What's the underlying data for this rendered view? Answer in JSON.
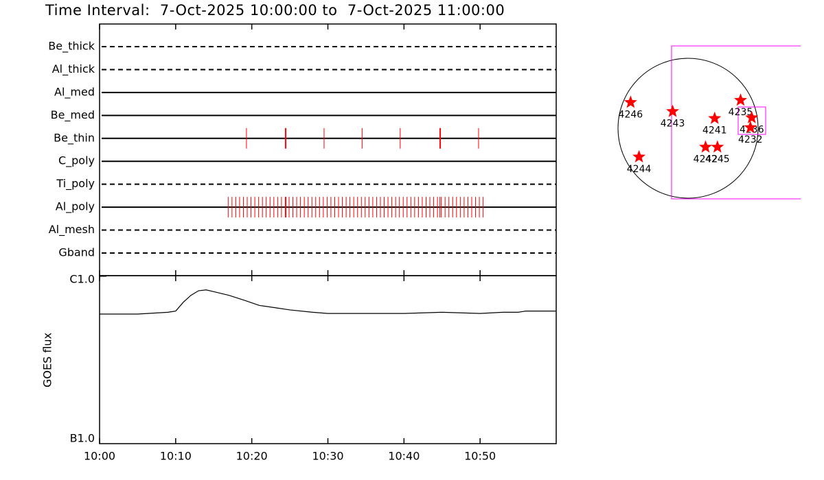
{
  "chart_data": [
    {
      "type": "timeline",
      "title": "Time Interval:  7-Oct-2025 10:00:00 to  7-Oct-2025 11:00:00",
      "categories": [
        "Be_thick",
        "Al_thick",
        "Al_med",
        "Be_med",
        "Be_thin",
        "C_poly",
        "Ti_poly",
        "Al_poly",
        "Al_mesh",
        "Gband"
      ],
      "line_styles": [
        "dashed",
        "dashed",
        "solid",
        "solid",
        "solid",
        "solid",
        "dashed",
        "solid",
        "dashed",
        "dashed"
      ],
      "color": "#ff0000",
      "xlim": [
        0,
        60
      ],
      "events": [
        {
          "name": "Be_thin",
          "x": [
            19.3,
            24.4,
            24.5,
            29.5,
            34.5,
            39.5,
            44.7,
            44.8,
            49.8
          ]
        },
        {
          "name": "Al_poly",
          "x": [
            16.9,
            17.4,
            17.9,
            18.4,
            18.9,
            19.4,
            19.9,
            20.4,
            20.9,
            21.4,
            21.9,
            22.4,
            22.9,
            23.4,
            23.9,
            24.4,
            24.5,
            24.9,
            25.4,
            25.9,
            26.4,
            26.9,
            27.4,
            27.9,
            28.4,
            28.9,
            29.4,
            29.9,
            30.4,
            30.9,
            31.4,
            31.9,
            32.4,
            32.9,
            33.4,
            33.9,
            34.4,
            34.9,
            35.4,
            35.9,
            36.4,
            36.9,
            37.4,
            37.9,
            38.4,
            38.9,
            39.4,
            39.9,
            40.4,
            40.9,
            41.4,
            41.9,
            42.4,
            42.9,
            43.4,
            43.9,
            44.4,
            44.7,
            44.9,
            45.4,
            45.9,
            46.4,
            46.9,
            47.4,
            47.9,
            48.4,
            48.9,
            49.4,
            49.9,
            50.4
          ]
        }
      ]
    },
    {
      "type": "line",
      "y_label": "GOES flux",
      "log_y": true,
      "color": "#000000",
      "xlim": [
        0,
        60
      ],
      "xticks": [
        {
          "value": 0,
          "label": "10:00"
        },
        {
          "value": 10,
          "label": "10:10"
        },
        {
          "value": 20,
          "label": "10:20"
        },
        {
          "value": 30,
          "label": "10:30"
        },
        {
          "value": 40,
          "label": "10:40"
        },
        {
          "value": 50,
          "label": "10:50"
        }
      ],
      "ylim": [
        1e-07,
        1e-06
      ],
      "yticks": [
        {
          "value": 1e-07,
          "label": "B1.0"
        },
        {
          "value": 1e-06,
          "label": "C1.0"
        }
      ],
      "x": [
        0,
        5,
        9,
        10,
        11,
        12,
        13,
        14,
        15,
        17,
        19,
        21,
        23,
        25,
        28,
        30,
        35,
        40,
        45,
        50,
        53,
        55,
        56,
        58,
        60
      ],
      "values": [
        5.95e-07,
        5.95e-07,
        6.1e-07,
        6.2e-07,
        7e-07,
        7.7e-07,
        8.2e-07,
        8.3e-07,
        8.1e-07,
        7.7e-07,
        7.2e-07,
        6.7e-07,
        6.5e-07,
        6.3e-07,
        6.1e-07,
        6e-07,
        6e-07,
        6e-07,
        6.1e-07,
        6e-07,
        6.1e-07,
        6.1e-07,
        6.2e-07,
        6.2e-07,
        6.2e-07
      ]
    },
    {
      "type": "map",
      "color": "#ff0000",
      "points": [
        {
          "label": "4246",
          "x": -0.82,
          "y": 0.37
        },
        {
          "label": "4243",
          "x": -0.22,
          "y": 0.24
        },
        {
          "label": "4241",
          "x": 0.38,
          "y": 0.14
        },
        {
          "label": "4235",
          "x": 0.75,
          "y": 0.4
        },
        {
          "label": "4236",
          "x": 0.91,
          "y": 0.15
        },
        {
          "label": "4232",
          "x": 0.89,
          "y": 0.01
        },
        {
          "label": "4242",
          "x": 0.25,
          "y": -0.27
        },
        {
          "label": "4245",
          "x": 0.42,
          "y": -0.27
        },
        {
          "label": "4244",
          "x": -0.7,
          "y": -0.41
        }
      ]
    }
  ]
}
